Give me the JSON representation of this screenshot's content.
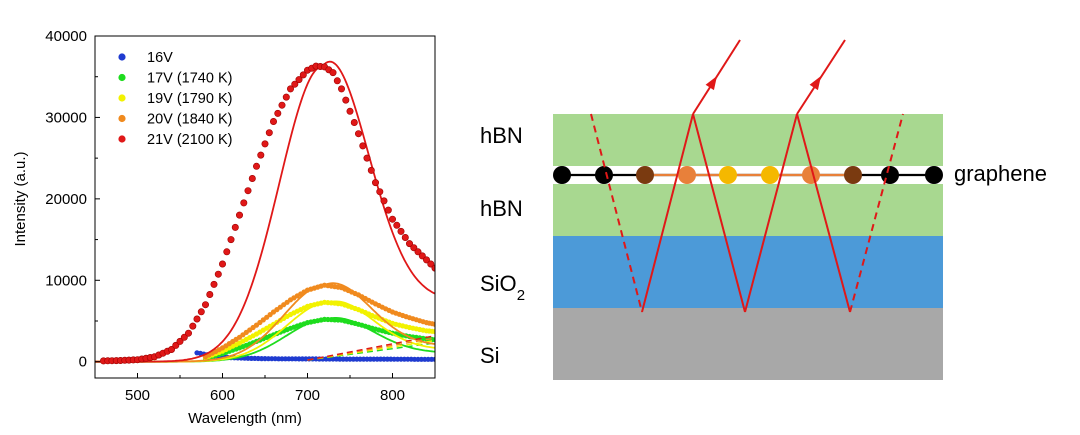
{
  "chart_data": {
    "type": "scatter",
    "xlabel": "Wavelength (nm)",
    "ylabel": "Intensity (a.u.)",
    "xlim": [
      450,
      850
    ],
    "ylim": [
      -2000,
      40000
    ],
    "xticks": [
      500,
      600,
      700,
      800
    ],
    "yticks": [
      0,
      10000,
      20000,
      30000,
      40000
    ],
    "legend_position": "top-left",
    "series": [
      {
        "name": "16V",
        "color": "#1f3bd0",
        "temperature_fit": false,
        "x": [
          570,
          590,
          610,
          630,
          650,
          670,
          690,
          710,
          730,
          750,
          770,
          790,
          810,
          830,
          850
        ],
        "y": [
          1100,
          700,
          500,
          420,
          380,
          360,
          350,
          340,
          330,
          320,
          320,
          320,
          310,
          300,
          300
        ]
      },
      {
        "name": "17V (1740 K)",
        "color": "#1edc1e",
        "temperature_fit": true,
        "fit_peak": 5300,
        "fit_center": 725,
        "fit_width": 70,
        "x": [
          580,
          600,
          620,
          640,
          660,
          680,
          700,
          720,
          740,
          760,
          780,
          800,
          820,
          840,
          850
        ],
        "y": [
          400,
          1000,
          1700,
          2500,
          3300,
          4100,
          4800,
          5200,
          5100,
          4600,
          4000,
          3500,
          3100,
          2800,
          2700
        ]
      },
      {
        "name": "19V (1790 K)",
        "color": "#f2f200",
        "temperature_fit": true,
        "fit_peak": 7300,
        "fit_center": 725,
        "fit_width": 70,
        "x": [
          580,
          600,
          620,
          640,
          660,
          680,
          700,
          720,
          740,
          760,
          780,
          800,
          820,
          840,
          850
        ],
        "y": [
          500,
          1300,
          2300,
          3400,
          4600,
          5800,
          6800,
          7300,
          7100,
          6400,
          5500,
          4700,
          4200,
          3800,
          3700
        ]
      },
      {
        "name": "20V (1840 K)",
        "color": "#f08a1e",
        "temperature_fit": true,
        "fit_peak": 9500,
        "fit_center": 722,
        "fit_width": 70,
        "x": [
          580,
          600,
          620,
          640,
          660,
          680,
          700,
          720,
          740,
          760,
          780,
          800,
          820,
          840,
          850
        ],
        "y": [
          600,
          1700,
          3000,
          4500,
          6100,
          7600,
          8800,
          9400,
          9100,
          8200,
          7100,
          6100,
          5400,
          4800,
          4600
        ]
      },
      {
        "name": "21V (2100 K)",
        "color": "#e01818",
        "temperature_fit": true,
        "fit_peak": 36300,
        "fit_center": 718,
        "fit_width": 72,
        "x": [
          460,
          480,
          500,
          520,
          540,
          560,
          580,
          600,
          620,
          640,
          660,
          680,
          700,
          710,
          720,
          730,
          740,
          760,
          780,
          800,
          820,
          840,
          850
        ],
        "y": [
          100,
          150,
          250,
          600,
          1500,
          3500,
          7000,
          12000,
          18000,
          24000,
          29500,
          33500,
          35800,
          36300,
          36200,
          35500,
          33500,
          28000,
          22000,
          17500,
          14500,
          12500,
          11500
        ]
      }
    ]
  },
  "diagram": {
    "layers": [
      {
        "label": "hBN",
        "color": "#a8d890"
      },
      {
        "label": "hBN",
        "color": "#a8d890"
      },
      {
        "label": "SiO",
        "sub": "2",
        "color": "#4c9ad8"
      },
      {
        "label": "Si",
        "color": "#a8a8a8"
      }
    ],
    "graphene_label": "graphene",
    "atom_colors": [
      "#000000",
      "#000000",
      "#7a3a10",
      "#e8803a",
      "#f5b800",
      "#f5b800",
      "#e8803a",
      "#7a3a10",
      "#000000",
      "#000000"
    ],
    "ray_color": "#e01818"
  }
}
